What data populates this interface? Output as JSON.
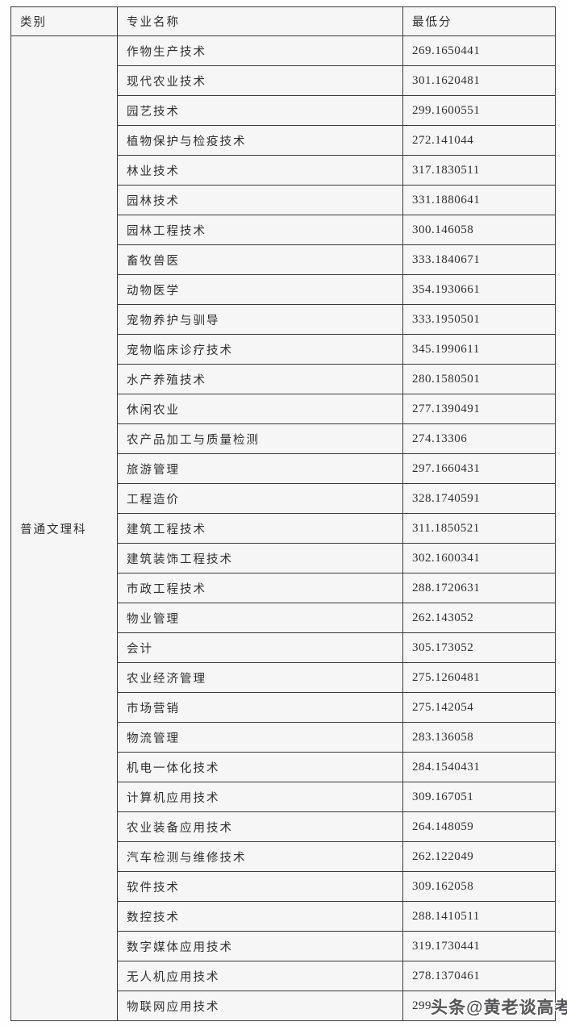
{
  "table": {
    "headers": {
      "category": "类别",
      "major": "专业名称",
      "min_score": "最低分"
    },
    "category_label": "普通文理科",
    "rows": [
      {
        "major": "作物生产技术",
        "score": "269.1650441"
      },
      {
        "major": "现代农业技术",
        "score": "301.1620481"
      },
      {
        "major": "园艺技术",
        "score": "299.1600551"
      },
      {
        "major": "植物保护与检疫技术",
        "score": "272.141044"
      },
      {
        "major": "林业技术",
        "score": "317.1830511"
      },
      {
        "major": "园林技术",
        "score": "331.1880641"
      },
      {
        "major": "园林工程技术",
        "score": "300.146058"
      },
      {
        "major": "畜牧兽医",
        "score": "333.1840671"
      },
      {
        "major": "动物医学",
        "score": "354.1930661"
      },
      {
        "major": "宠物养护与驯导",
        "score": "333.1950501"
      },
      {
        "major": "宠物临床诊疗技术",
        "score": "345.1990611"
      },
      {
        "major": "水产养殖技术",
        "score": "280.1580501"
      },
      {
        "major": "休闲农业",
        "score": "277.1390491"
      },
      {
        "major": "农产品加工与质量检测",
        "score": "274.13306"
      },
      {
        "major": "旅游管理",
        "score": "297.1660431"
      },
      {
        "major": "工程造价",
        "score": "328.1740591"
      },
      {
        "major": "建筑工程技术",
        "score": "311.1850521"
      },
      {
        "major": "建筑装饰工程技术",
        "score": "302.1600341"
      },
      {
        "major": "市政工程技术",
        "score": "288.1720631"
      },
      {
        "major": "物业管理",
        "score": "262.143052"
      },
      {
        "major": "会计",
        "score": "305.173052"
      },
      {
        "major": "农业经济管理",
        "score": "275.1260481"
      },
      {
        "major": "市场营销",
        "score": "275.142054"
      },
      {
        "major": "物流管理",
        "score": "283.136058"
      },
      {
        "major": "机电一体化技术",
        "score": "284.1540431"
      },
      {
        "major": "计算机应用技术",
        "score": "309.167051"
      },
      {
        "major": "农业装备应用技术",
        "score": "264.148059"
      },
      {
        "major": "汽车检测与维修技术",
        "score": "262.122049"
      },
      {
        "major": "软件技术",
        "score": "309.162058"
      },
      {
        "major": "数控技术",
        "score": "288.1410511"
      },
      {
        "major": "数字媒体应用技术",
        "score": "319.1730441"
      },
      {
        "major": "无人机应用技术",
        "score": "278.1370461"
      },
      {
        "major": "物联网应用技术",
        "score": "299."
      }
    ]
  },
  "watermark": {
    "text": "头条@黄老谈高考"
  },
  "colors": {
    "border": "#3a3a3a",
    "cell_background": "#f6f6f6",
    "text": "#2f2f2f",
    "watermark": "#55565a"
  }
}
